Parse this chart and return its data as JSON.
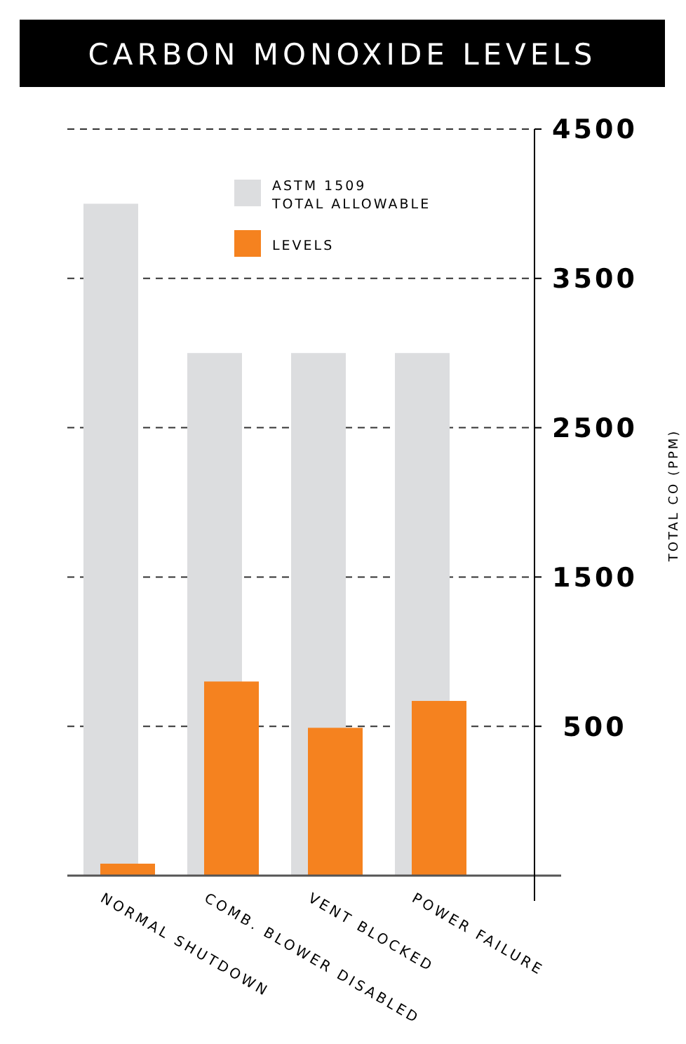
{
  "chart_data": {
    "type": "bar",
    "title": "CARBON MONOXIDE LEVELS",
    "ylabel": "TOTAL CO (PPM)",
    "categories": [
      "NORMAL SHUTDOWN",
      "COMB. BLOWER DISABLED",
      "VENT BLOCKED",
      "POWER FAILURE"
    ],
    "series": [
      {
        "name": "ASTM 1509\nTOTAL ALLOWABLE",
        "color": "#dcdddf",
        "base": [
          -500,
          -500,
          -500,
          -500
        ],
        "values": [
          4500,
          3500,
          3500,
          3500
        ]
      },
      {
        "name": "LEVELS",
        "color": "#f5821f",
        "base": [
          -500,
          -500,
          -500,
          -500
        ],
        "values": [
          80,
          1300,
          990,
          1170
        ]
      }
    ],
    "ylim": [
      -500,
      4500
    ],
    "yticks": [
      500,
      1500,
      2500,
      3500,
      4500
    ],
    "grid": "y",
    "legend": "top"
  }
}
